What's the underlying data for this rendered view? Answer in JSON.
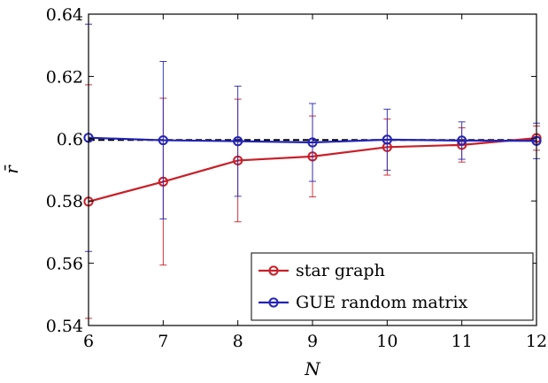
{
  "chart_data": {
    "type": "line",
    "xlabel": "N",
    "ylabel": "r̄",
    "xlim": [
      6,
      12
    ],
    "ylim": [
      0.54,
      0.64
    ],
    "x_ticks": [
      "6",
      "7",
      "8",
      "9",
      "10",
      "11",
      "12"
    ],
    "y_ticks": [
      "0.54",
      "0.56",
      "0.58",
      "0.6",
      "0.62",
      "0.64"
    ],
    "legend_position": "bottom-right",
    "reference_line": {
      "y": 0.5996,
      "style": "dashed",
      "color": "#000000"
    },
    "series": [
      {
        "name": "star graph",
        "color": "#c8202a",
        "marker": "circle",
        "x": [
          6,
          7,
          8,
          9,
          10,
          11,
          12
        ],
        "y": [
          0.5798,
          0.5862,
          0.593,
          0.5943,
          0.5973,
          0.598,
          0.6002
        ],
        "err": [
          0.0375,
          0.0268,
          0.0197,
          0.013,
          0.009,
          0.0055,
          0.0039
        ]
      },
      {
        "name": "GUE random matrix",
        "color": "#2424b4",
        "marker": "circle",
        "x": [
          6,
          7,
          8,
          9,
          10,
          11,
          12
        ],
        "y": [
          0.6003,
          0.5995,
          0.5992,
          0.5988,
          0.5997,
          0.5994,
          0.5993
        ],
        "err": [
          0.0365,
          0.0253,
          0.0177,
          0.0125,
          0.0098,
          0.006,
          0.0057
        ]
      }
    ]
  }
}
